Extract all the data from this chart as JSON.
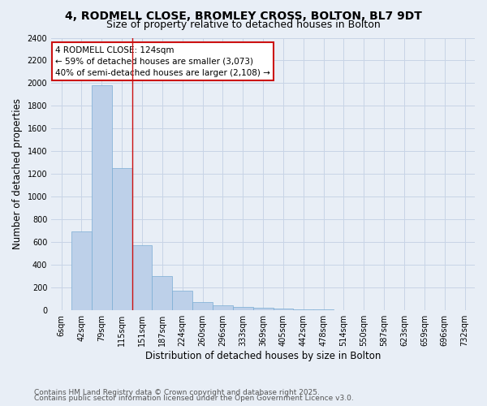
{
  "title_line1": "4, RODMELL CLOSE, BROMLEY CROSS, BOLTON, BL7 9DT",
  "title_line2": "Size of property relative to detached houses in Bolton",
  "xlabel": "Distribution of detached houses by size in Bolton",
  "ylabel": "Number of detached properties",
  "categories": [
    "6sqm",
    "42sqm",
    "79sqm",
    "115sqm",
    "151sqm",
    "187sqm",
    "224sqm",
    "260sqm",
    "296sqm",
    "333sqm",
    "369sqm",
    "405sqm",
    "442sqm",
    "478sqm",
    "514sqm",
    "550sqm",
    "587sqm",
    "623sqm",
    "659sqm",
    "696sqm",
    "732sqm"
  ],
  "values": [
    5,
    695,
    1980,
    1250,
    570,
    305,
    175,
    75,
    45,
    30,
    25,
    18,
    12,
    8,
    5,
    3,
    2,
    1,
    1,
    0,
    0
  ],
  "bar_color": "#bdd0e9",
  "bar_edgecolor": "#7aadd4",
  "grid_color": "#c8d4e6",
  "bg_color": "#e8eef6",
  "vline_color": "#cc1111",
  "vline_x_index": 3,
  "annotation_text": "4 RODMELL CLOSE: 124sqm\n← 59% of detached houses are smaller (3,073)\n40% of semi-detached houses are larger (2,108) →",
  "annotation_box_color": "#ffffff",
  "annotation_border_color": "#cc1111",
  "footnote1": "Contains HM Land Registry data © Crown copyright and database right 2025.",
  "footnote2": "Contains public sector information licensed under the Open Government Licence v3.0.",
  "ylim": [
    0,
    2400
  ],
  "yticks": [
    0,
    200,
    400,
    600,
    800,
    1000,
    1200,
    1400,
    1600,
    1800,
    2000,
    2200,
    2400
  ],
  "title_fontsize": 10,
  "subtitle_fontsize": 9,
  "tick_fontsize": 7,
  "label_fontsize": 8.5,
  "footnote_fontsize": 6.5
}
